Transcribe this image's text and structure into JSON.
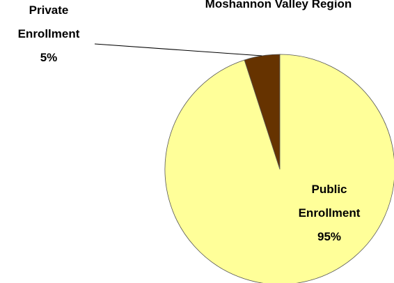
{
  "chart_data": {
    "type": "pie",
    "title": "Moshannon Valley Region",
    "categories": [
      "Private Enrollment",
      "Public Enrollment"
    ],
    "values": [
      5,
      95
    ],
    "value_labels": [
      "5%",
      "95%"
    ],
    "colors": [
      "#663300",
      "#ffff99"
    ]
  }
}
